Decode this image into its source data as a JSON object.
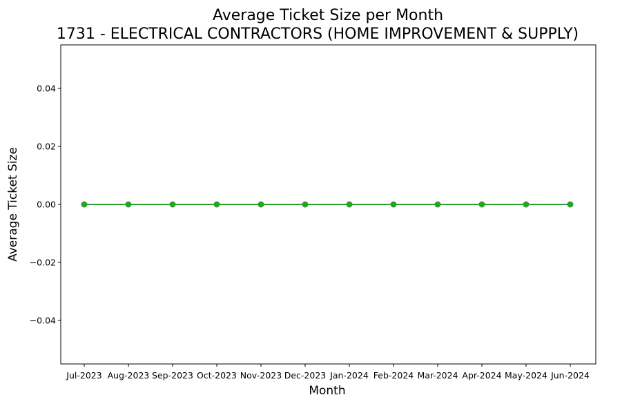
{
  "chart_data": {
    "type": "line",
    "title": "Average Ticket Size per Month",
    "subtitle": "1731 - ELECTRICAL CONTRACTORS (HOME IMPROVEMENT & SUPPLY)",
    "xlabel": "Month",
    "ylabel": "Average Ticket Size",
    "categories": [
      "Jul-2023",
      "Aug-2023",
      "Sep-2023",
      "Oct-2023",
      "Nov-2023",
      "Dec-2023",
      "Jan-2024",
      "Feb-2024",
      "Mar-2024",
      "Apr-2024",
      "May-2024",
      "Jun-2024"
    ],
    "series": [
      {
        "values": [
          0,
          0,
          0,
          0,
          0,
          0,
          0,
          0,
          0,
          0,
          0,
          0
        ],
        "color": "#2ca02c"
      }
    ],
    "ylim": [
      -0.055,
      0.055
    ],
    "yticks": [
      -0.04,
      -0.02,
      0.0,
      0.02,
      0.04
    ],
    "ytick_labels": [
      "−0.04",
      "−0.02",
      "0.00",
      "0.02",
      "0.04"
    ],
    "grid": false,
    "legend": "none",
    "marker": "circle"
  }
}
